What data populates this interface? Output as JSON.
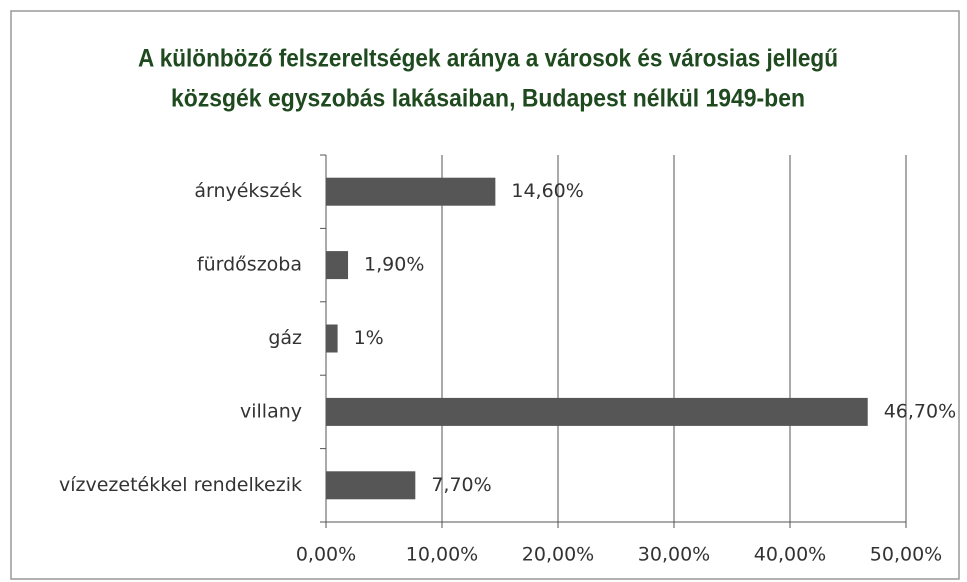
{
  "chart_data": {
    "type": "barh",
    "title": [
      "A különböző felszereltségek aránya a városok és városias jellegű",
      "közsgék egyszobás lakásaiban, Budapest nélkül 1949-ben"
    ],
    "categories": [
      "árnyékszék",
      "fürdőszoba",
      "gáz",
      "villany",
      "vízvezetékkel rendelkezik"
    ],
    "values": [
      14.6,
      1.9,
      1,
      46.7,
      7.7
    ],
    "value_labels": [
      "14,60%",
      "1,90%",
      "1%",
      "46,70%",
      "7,70%"
    ],
    "color": "#565656",
    "xlim": [
      0,
      50
    ],
    "xticks": [
      {
        "value": 0,
        "label": "0,00%"
      },
      {
        "value": 10,
        "label": "10,00%"
      },
      {
        "value": 20,
        "label": "20,00%"
      },
      {
        "value": 30,
        "label": "30,00%"
      },
      {
        "value": 40,
        "label": "40,00%"
      },
      {
        "value": 50,
        "label": "50,00%"
      }
    ],
    "grid": true
  }
}
